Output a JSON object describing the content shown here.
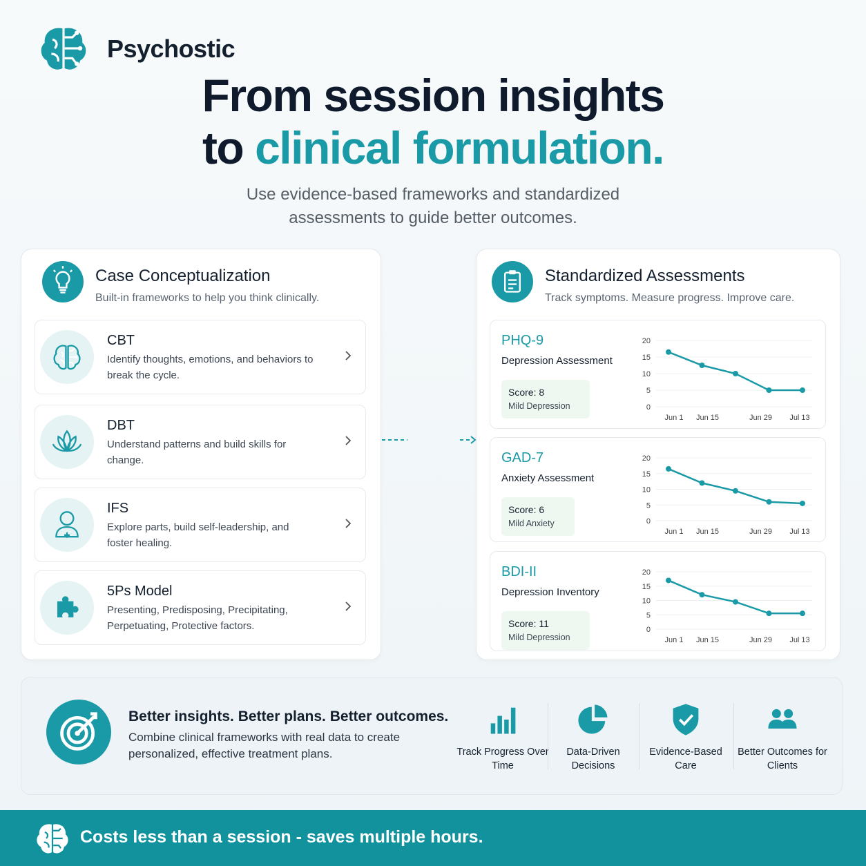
{
  "brand": "Psychostic",
  "headline": {
    "line1": "From session insights",
    "line2_plain": "to",
    "line2_accent": "clinical formulation."
  },
  "subtitle": "Use evidence-based frameworks and standardized assessments to guide better outcomes.",
  "conceptualization": {
    "title": "Case Conceptualization",
    "subtitle": "Built-in frameworks to help you think clinically.",
    "items": [
      {
        "name": "CBT",
        "description": "Identify thoughts, emotions, and behaviors to break the cycle."
      },
      {
        "name": "DBT",
        "description": "Understand patterns and build skills for change."
      },
      {
        "name": "IFS",
        "description": "Explore parts, build self-leadership, and foster healing."
      },
      {
        "name": "5Ps Model",
        "description": "Presenting, Predisposing, Precipitating, Perpetuating, Protective factors."
      }
    ]
  },
  "assessments": {
    "title": "Standardized Assessments",
    "subtitle": "Track symptoms. Measure progress. Improve care.",
    "items": [
      {
        "name": "PHQ-9",
        "label": "Depression Assessment",
        "score": "Score: 8",
        "severity": "Mild Depression",
        "chart_data": {
          "type": "line",
          "categories": [
            "Jun 1",
            "Jun 15",
            null,
            "Jun 29",
            "Jul 13"
          ],
          "values": [
            16.5,
            12.5,
            10,
            5,
            5
          ],
          "color": "#1a9aa6",
          "ylim": [
            0,
            20
          ],
          "yticks": [
            0,
            5,
            10,
            15,
            20
          ],
          "grid": true
        }
      },
      {
        "name": "GAD-7",
        "label": "Anxiety Assessment",
        "score": "Score: 6",
        "severity": "Mild Anxiety",
        "chart_data": {
          "type": "line",
          "categories": [
            "Jun 1",
            "Jun 15",
            null,
            "Jun 29",
            "Jul 13"
          ],
          "values": [
            16.5,
            12,
            9.5,
            6,
            5.5
          ],
          "color": "#1a9aa6",
          "ylim": [
            0,
            20
          ],
          "yticks": [
            0,
            5,
            10,
            15,
            20
          ],
          "grid": true
        }
      },
      {
        "name": "BDI-II",
        "label": "Depression Inventory",
        "score": "Score: 11",
        "severity": "Mild Depression",
        "chart_data": {
          "type": "line",
          "categories": [
            "Jun 1",
            "Jun 15",
            null,
            "Jun 29",
            "Jul 13"
          ],
          "values": [
            17,
            12,
            9.5,
            5.5,
            5.5
          ],
          "color": "#1a9aa6",
          "ylim": [
            0,
            20
          ],
          "yticks": [
            0,
            5,
            10,
            15,
            20
          ],
          "grid": true
        }
      }
    ]
  },
  "banner": {
    "title": "Better insights. Better plans. Better outcomes.",
    "text": "Combine clinical frameworks with real data to create personalized, effective treatment plans.",
    "features": [
      "Track Progress Over Time",
      "Data-Driven Decisions",
      "Evidence-Based Care",
      "Better Outcomes for Clients"
    ]
  },
  "footer": "Costs less than a session - saves multiple hours."
}
